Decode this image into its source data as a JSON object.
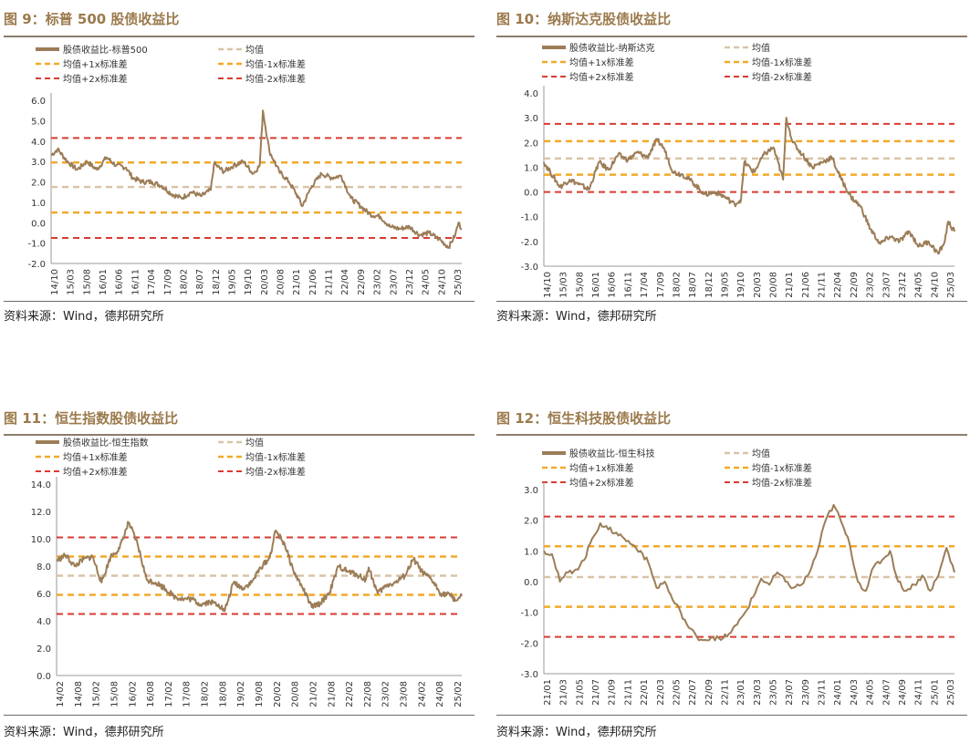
{
  "colors": {
    "series": "#9c7d57",
    "mean": "#d9c3a6",
    "sd1": "#f2a928",
    "sd2": "#d93a31",
    "title": "#9b7a4c"
  },
  "legend_labels": {
    "series_prefix": "股债收益比-",
    "mean": "均值",
    "plus1": "均值+1x标准差",
    "minus1": "均值-1x标准差",
    "plus2": "均值+2x标准差",
    "minus2": "均值-2x标准差"
  },
  "source_text": "资料来源：Wind，德邦研究所",
  "chart_data": [
    {
      "type": "line",
      "title": "图 9：标普 500 股债收益比",
      "series_name": "股债收益比-标普500",
      "x_start": "2014-10",
      "x_end": "2025-04",
      "x_tick_labels": [
        "14/10",
        "15/03",
        "15/08",
        "16/01",
        "16/06",
        "16/11",
        "17/04",
        "17/09",
        "18/02",
        "18/07",
        "18/12",
        "19/05",
        "19/10",
        "20/03",
        "20/08",
        "21/01",
        "21/06",
        "21/11",
        "22/04",
        "22/09",
        "23/02",
        "23/07",
        "23/12",
        "24/05",
        "24/10",
        "25/03"
      ],
      "y_ticks": [
        "-2.0",
        "-1.0",
        "0.0",
        "1.0",
        "2.0",
        "3.0",
        "4.0",
        "5.0",
        "6.0"
      ],
      "ylim": [
        -2,
        6
      ],
      "mean": 1.75,
      "plus1": 2.95,
      "minus1": 0.5,
      "plus2": 4.15,
      "minus2": -0.75,
      "points": [
        [
          "2014-10",
          3.3
        ],
        [
          "2014-12",
          3.6
        ],
        [
          "2015-03",
          3.0
        ],
        [
          "2015-06",
          2.6
        ],
        [
          "2015-09",
          3.0
        ],
        [
          "2015-12",
          2.6
        ],
        [
          "2016-03",
          3.2
        ],
        [
          "2016-06",
          2.8
        ],
        [
          "2016-09",
          2.7
        ],
        [
          "2016-11",
          2.2
        ],
        [
          "2017-02",
          2.0
        ],
        [
          "2017-05",
          2.0
        ],
        [
          "2017-08",
          1.8
        ],
        [
          "2017-11",
          1.4
        ],
        [
          "2018-02",
          1.2
        ],
        [
          "2018-05",
          1.5
        ],
        [
          "2018-08",
          1.3
        ],
        [
          "2018-11",
          1.6
        ],
        [
          "2018-12",
          2.9
        ],
        [
          "2019-03",
          2.5
        ],
        [
          "2019-06",
          2.8
        ],
        [
          "2019-09",
          3.0
        ],
        [
          "2019-12",
          2.4
        ],
        [
          "2020-02",
          2.8
        ],
        [
          "2020-03",
          5.5
        ],
        [
          "2020-05",
          3.5
        ],
        [
          "2020-08",
          2.5
        ],
        [
          "2020-11",
          2.0
        ],
        [
          "2021-02",
          1.2
        ],
        [
          "2021-03",
          0.8
        ],
        [
          "2021-06",
          1.8
        ],
        [
          "2021-09",
          2.4
        ],
        [
          "2021-12",
          2.2
        ],
        [
          "2022-03",
          2.3
        ],
        [
          "2022-06",
          1.2
        ],
        [
          "2022-09",
          0.8
        ],
        [
          "2022-12",
          0.4
        ],
        [
          "2023-03",
          0.3
        ],
        [
          "2023-06",
          -0.2
        ],
        [
          "2023-09",
          -0.3
        ],
        [
          "2023-12",
          -0.2
        ],
        [
          "2024-03",
          -0.6
        ],
        [
          "2024-06",
          -0.5
        ],
        [
          "2024-09",
          -0.8
        ],
        [
          "2024-12",
          -1.2
        ],
        [
          "2025-02",
          -0.6
        ],
        [
          "2025-03",
          0.0
        ],
        [
          "2025-04",
          -0.3
        ]
      ]
    },
    {
      "type": "line",
      "title": "图 10：纳斯达克股债收益比",
      "series_name": "股债收益比-纳斯达克",
      "x_start": "2014-10",
      "x_end": "2025-05",
      "x_tick_labels": [
        "14/10",
        "15/03",
        "15/08",
        "16/01",
        "16/06",
        "16/11",
        "17/04",
        "17/09",
        "18/02",
        "18/07",
        "18/12",
        "19/05",
        "19/10",
        "20/03",
        "20/08",
        "21/01",
        "21/06",
        "21/11",
        "22/04",
        "22/09",
        "23/02",
        "23/07",
        "23/12",
        "24/05",
        "24/10",
        "25/03"
      ],
      "y_ticks": [
        "-3.0",
        "-2.0",
        "-1.0",
        "0.0",
        "1.0",
        "2.0",
        "3.0",
        "4.0"
      ],
      "ylim": [
        -3,
        4
      ],
      "mean": 1.35,
      "plus1": 2.05,
      "minus1": 0.7,
      "plus2": 2.75,
      "minus2": 0.0,
      "points": [
        [
          "2014-10",
          1.2
        ],
        [
          "2014-12",
          0.8
        ],
        [
          "2015-03",
          0.2
        ],
        [
          "2015-06",
          0.5
        ],
        [
          "2015-09",
          0.3
        ],
        [
          "2015-12",
          0.1
        ],
        [
          "2016-03",
          1.2
        ],
        [
          "2016-06",
          0.9
        ],
        [
          "2016-09",
          1.5
        ],
        [
          "2016-12",
          1.3
        ],
        [
          "2017-03",
          1.6
        ],
        [
          "2017-06",
          1.4
        ],
        [
          "2017-09",
          2.1
        ],
        [
          "2017-11",
          1.8
        ],
        [
          "2018-02",
          0.8
        ],
        [
          "2018-05",
          0.7
        ],
        [
          "2018-08",
          0.4
        ],
        [
          "2018-11",
          0.0
        ],
        [
          "2018-12",
          -0.1
        ],
        [
          "2019-03",
          0.0
        ],
        [
          "2019-06",
          -0.2
        ],
        [
          "2019-09",
          -0.5
        ],
        [
          "2019-11",
          -0.3
        ],
        [
          "2019-12",
          1.2
        ],
        [
          "2020-03",
          0.8
        ],
        [
          "2020-06",
          1.5
        ],
        [
          "2020-09",
          1.8
        ],
        [
          "2020-12",
          0.5
        ],
        [
          "2021-01",
          3.0
        ],
        [
          "2021-03",
          2.0
        ],
        [
          "2021-06",
          1.5
        ],
        [
          "2021-09",
          1.0
        ],
        [
          "2021-12",
          1.2
        ],
        [
          "2022-03",
          1.4
        ],
        [
          "2022-06",
          0.5
        ],
        [
          "2022-09",
          -0.2
        ],
        [
          "2022-12",
          -0.6
        ],
        [
          "2023-03",
          -1.5
        ],
        [
          "2023-06",
          -2.1
        ],
        [
          "2023-09",
          -1.8
        ],
        [
          "2023-12",
          -2.0
        ],
        [
          "2024-03",
          -1.6
        ],
        [
          "2024-06",
          -2.2
        ],
        [
          "2024-09",
          -2.0
        ],
        [
          "2024-12",
          -2.5
        ],
        [
          "2025-02",
          -2.0
        ],
        [
          "2025-03",
          -1.2
        ],
        [
          "2025-05",
          -1.6
        ]
      ]
    },
    {
      "type": "line",
      "title": "图 11：恒生指数股债收益比",
      "series_name": "股债收益比-恒生指数",
      "x_start": "2014-02",
      "x_end": "2025-05",
      "x_tick_labels": [
        "14/02",
        "14/08",
        "15/02",
        "15/08",
        "16/02",
        "16/08",
        "17/02",
        "17/08",
        "18/02",
        "18/08",
        "19/02",
        "19/08",
        "20/02",
        "20/08",
        "21/02",
        "21/08",
        "22/02",
        "22/08",
        "23/02",
        "23/08",
        "24/02",
        "24/08",
        "25/02"
      ],
      "y_ticks": [
        "0.0",
        "2.0",
        "4.0",
        "6.0",
        "8.0",
        "10.0",
        "12.0",
        "14.0"
      ],
      "ylim": [
        0,
        14
      ],
      "mean": 7.3,
      "plus1": 8.7,
      "minus1": 5.9,
      "plus2": 10.1,
      "minus2": 4.5,
      "points": [
        [
          "2014-02",
          8.4
        ],
        [
          "2014-05",
          8.8
        ],
        [
          "2014-08",
          8.0
        ],
        [
          "2014-11",
          8.5
        ],
        [
          "2015-02",
          8.7
        ],
        [
          "2015-05",
          6.8
        ],
        [
          "2015-08",
          8.7
        ],
        [
          "2015-11",
          9.3
        ],
        [
          "2016-02",
          11.2
        ],
        [
          "2016-05",
          9.6
        ],
        [
          "2016-08",
          7.0
        ],
        [
          "2016-11",
          6.8
        ],
        [
          "2017-02",
          6.4
        ],
        [
          "2017-05",
          5.8
        ],
        [
          "2017-08",
          5.6
        ],
        [
          "2017-11",
          5.6
        ],
        [
          "2018-02",
          5.2
        ],
        [
          "2018-05",
          5.4
        ],
        [
          "2018-08",
          5.2
        ],
        [
          "2018-10",
          4.7
        ],
        [
          "2019-01",
          6.8
        ],
        [
          "2019-04",
          6.4
        ],
        [
          "2019-07",
          6.8
        ],
        [
          "2019-10",
          7.9
        ],
        [
          "2020-01",
          8.6
        ],
        [
          "2020-03",
          10.6
        ],
        [
          "2020-06",
          9.6
        ],
        [
          "2020-09",
          7.6
        ],
        [
          "2020-12",
          6.4
        ],
        [
          "2021-03",
          5.0
        ],
        [
          "2021-06",
          5.3
        ],
        [
          "2021-09",
          6.1
        ],
        [
          "2021-12",
          8.0
        ],
        [
          "2022-03",
          7.6
        ],
        [
          "2022-06",
          7.4
        ],
        [
          "2022-09",
          7.0
        ],
        [
          "2022-10",
          7.9
        ],
        [
          "2023-01",
          6.0
        ],
        [
          "2023-04",
          6.6
        ],
        [
          "2023-07",
          6.8
        ],
        [
          "2023-10",
          7.3
        ],
        [
          "2024-01",
          8.5
        ],
        [
          "2024-04",
          7.5
        ],
        [
          "2024-07",
          7.0
        ],
        [
          "2024-10",
          6.0
        ],
        [
          "2025-01",
          5.9
        ],
        [
          "2025-03",
          5.5
        ],
        [
          "2025-05",
          5.8
        ]
      ]
    },
    {
      "type": "line",
      "title": "图 12：恒生科技股债收益比",
      "series_name": "股债收益比-恒生科技",
      "x_start": "2021-01",
      "x_end": "2025-04",
      "x_tick_labels": [
        "21/01",
        "21/03",
        "21/05",
        "21/07",
        "21/09",
        "21/11",
        "22/01",
        "22/03",
        "22/05",
        "22/07",
        "22/09",
        "22/11",
        "23/01",
        "23/03",
        "23/05",
        "23/07",
        "23/09",
        "23/11",
        "24/01",
        "24/03",
        "24/05",
        "24/07",
        "24/09",
        "24/11",
        "25/01",
        "25/03"
      ],
      "y_ticks": [
        "-3.0",
        "-2.0",
        "-1.0",
        "0.0",
        "1.0",
        "2.0",
        "3.0"
      ],
      "ylim": [
        -3,
        3
      ],
      "mean": 0.15,
      "plus1": 1.15,
      "minus1": -0.82,
      "plus2": 2.12,
      "minus2": -1.8,
      "points": [
        [
          "2021-01",
          1.0
        ],
        [
          "2021-02",
          0.9
        ],
        [
          "2021-03",
          0.0
        ],
        [
          "2021-04",
          0.3
        ],
        [
          "2021-05",
          0.4
        ],
        [
          "2021-06",
          0.7
        ],
        [
          "2021-07",
          1.4
        ],
        [
          "2021-08",
          1.9
        ],
        [
          "2021-09",
          1.7
        ],
        [
          "2021-10",
          1.6
        ],
        [
          "2021-11",
          1.4
        ],
        [
          "2021-12",
          1.2
        ],
        [
          "2022-01",
          1.0
        ],
        [
          "2022-02",
          0.6
        ],
        [
          "2022-03",
          -0.2
        ],
        [
          "2022-04",
          0.0
        ],
        [
          "2022-05",
          -0.6
        ],
        [
          "2022-06",
          -1.0
        ],
        [
          "2022-07",
          -1.5
        ],
        [
          "2022-08",
          -1.8
        ],
        [
          "2022-09",
          -1.9
        ],
        [
          "2022-10",
          -1.8
        ],
        [
          "2022-11",
          -1.9
        ],
        [
          "2022-12",
          -1.7
        ],
        [
          "2023-01",
          -1.4
        ],
        [
          "2023-02",
          -1.0
        ],
        [
          "2023-03",
          -0.5
        ],
        [
          "2023-04",
          0.1
        ],
        [
          "2023-05",
          -0.1
        ],
        [
          "2023-06",
          0.3
        ],
        [
          "2023-07",
          0.0
        ],
        [
          "2023-08",
          -0.2
        ],
        [
          "2023-09",
          -0.1
        ],
        [
          "2023-10",
          0.3
        ],
        [
          "2023-11",
          1.0
        ],
        [
          "2023-12",
          2.0
        ],
        [
          "2024-01",
          2.5
        ],
        [
          "2024-02",
          1.9
        ],
        [
          "2024-03",
          1.2
        ],
        [
          "2024-04",
          0.0
        ],
        [
          "2024-05",
          -0.3
        ],
        [
          "2024-06",
          0.5
        ],
        [
          "2024-07",
          0.7
        ],
        [
          "2024-08",
          1.0
        ],
        [
          "2024-09",
          0.0
        ],
        [
          "2024-10",
          -0.3
        ],
        [
          "2024-11",
          -0.1
        ],
        [
          "2024-12",
          0.2
        ],
        [
          "2025-01",
          -0.3
        ],
        [
          "2025-02",
          0.2
        ],
        [
          "2025-03",
          1.1
        ],
        [
          "2025-04",
          0.3
        ]
      ]
    }
  ]
}
